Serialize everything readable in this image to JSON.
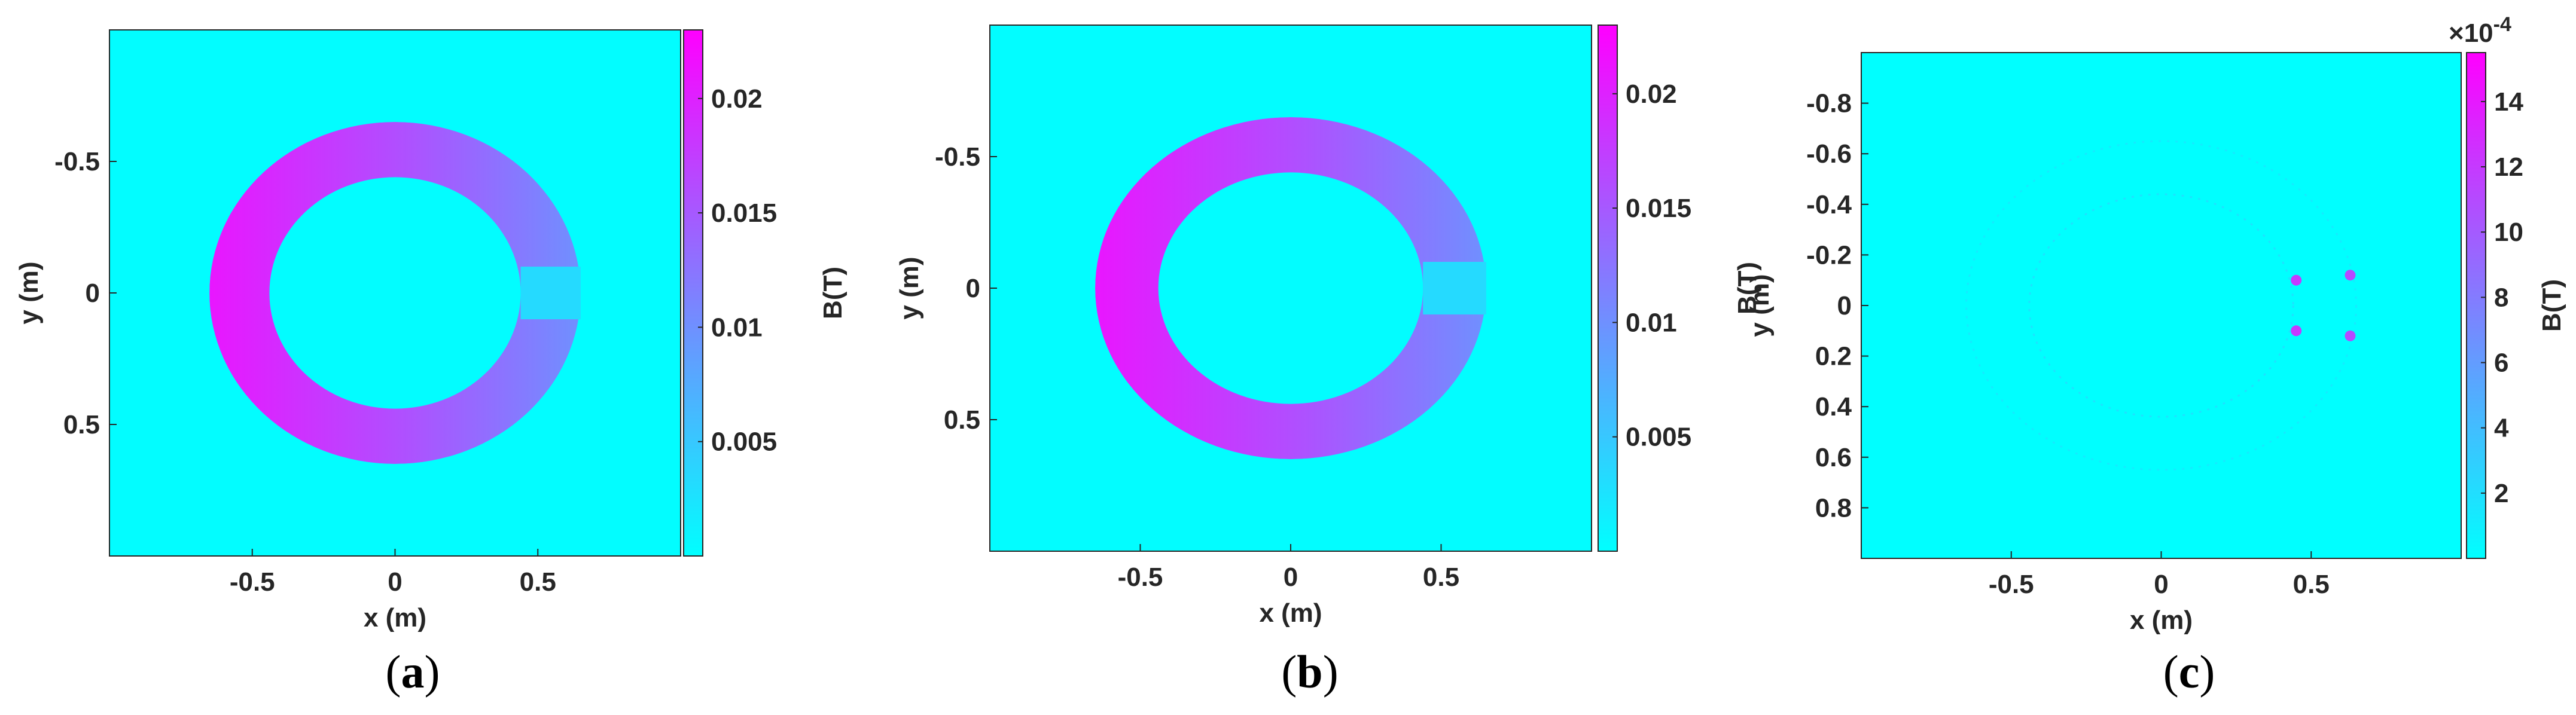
{
  "colors": {
    "background": "#00ffff",
    "low": "#00ffff",
    "high": "#ff00ff"
  },
  "chart_data": [
    {
      "type": "heatmap",
      "panel_label": "a",
      "xlabel": "x (m)",
      "ylabel": "y (m)",
      "colorbar_label": "B(T)",
      "xlim": [
        -1,
        1
      ],
      "ylim": [
        -1,
        1
      ],
      "y_reversed": true,
      "xticks": [
        -0.5,
        0,
        0.5
      ],
      "xtick_labels": [
        "-0.5",
        "0",
        "0.5"
      ],
      "yticks": [
        -0.5,
        0,
        0.5
      ],
      "ytick_labels": [
        "-0.5",
        "0",
        "0.5"
      ],
      "clim": [
        0,
        0.023
      ],
      "cbar_ticks": [
        0.005,
        0.01,
        0.015,
        0.02
      ],
      "cbar_tick_labels": [
        "0.005",
        "0.01",
        "0.015",
        "0.02"
      ],
      "cbar_exponent": "",
      "field": {
        "ring_inner_radius": 0.44,
        "ring_outer_radius": 0.65,
        "ring_center_x": 0,
        "ring_center_y": 0,
        "air_gap_x_range": [
          0.44,
          0.65
        ],
        "air_gap_half_height": 0.1,
        "b_ring_max": 0.021,
        "b_ring_min": 0.01,
        "b_gap": 0.004,
        "b_background": 0.0002
      }
    },
    {
      "type": "heatmap",
      "panel_label": "b",
      "xlabel": "x (m)",
      "ylabel": "y (m)",
      "colorbar_label": "B(T)",
      "xlim": [
        -1,
        1
      ],
      "ylim": [
        -1,
        1
      ],
      "y_reversed": true,
      "xticks": [
        -0.5,
        0,
        0.5
      ],
      "xtick_labels": [
        "-0.5",
        "0",
        "0.5"
      ],
      "yticks": [
        -0.5,
        0,
        0.5
      ],
      "ytick_labels": [
        "-0.5",
        "0",
        "0.5"
      ],
      "clim": [
        0,
        0.023
      ],
      "cbar_ticks": [
        0.005,
        0.01,
        0.015,
        0.02
      ],
      "cbar_tick_labels": [
        "0.005",
        "0.01",
        "0.015",
        "0.02"
      ],
      "cbar_exponent": "",
      "field": {
        "ring_inner_radius": 0.44,
        "ring_outer_radius": 0.65,
        "ring_center_x": 0,
        "ring_center_y": 0,
        "air_gap_x_range": [
          0.44,
          0.65
        ],
        "air_gap_half_height": 0.1,
        "b_ring_max": 0.021,
        "b_ring_min": 0.01,
        "b_gap": 0.004,
        "b_background": 0.0002
      }
    },
    {
      "type": "heatmap",
      "panel_label": "c",
      "xlabel": "x (m)",
      "ylabel": "y (m)",
      "colorbar_label": "B(T)",
      "xlim": [
        -1,
        1
      ],
      "ylim": [
        -1,
        1
      ],
      "y_reversed": true,
      "xticks": [
        -0.5,
        0,
        0.5
      ],
      "xtick_labels": [
        "-0.5",
        "0",
        "0.5"
      ],
      "yticks": [
        -0.8,
        -0.6,
        -0.4,
        -0.2,
        0,
        0.2,
        0.4,
        0.6,
        0.8
      ],
      "ytick_labels": [
        "-0.8",
        "-0.6",
        "-0.4",
        "-0.2",
        "0",
        "0.2",
        "0.4",
        "0.6",
        "0.8"
      ],
      "clim": [
        0,
        0.00155
      ],
      "cbar_ticks": [
        0.0002,
        0.0004,
        0.0006,
        0.0008,
        0.001,
        0.0012,
        0.0014
      ],
      "cbar_tick_labels": [
        "2",
        "4",
        "6",
        "8",
        "10",
        "12",
        "14"
      ],
      "cbar_exponent": "-4",
      "cbar_exponent_base": "×10",
      "field": {
        "ring_inner_radius": 0.44,
        "ring_outer_radius": 0.65,
        "ring_center_x": 0,
        "ring_center_y": 0,
        "difference_ring_level": 5e-05,
        "hotspots": [
          {
            "x": 0.45,
            "y": -0.1,
            "b": 0.0012
          },
          {
            "x": 0.63,
            "y": -0.12,
            "b": 0.0011
          },
          {
            "x": 0.45,
            "y": 0.1,
            "b": 0.0012
          },
          {
            "x": 0.63,
            "y": 0.12,
            "b": 0.0011
          }
        ]
      }
    }
  ]
}
